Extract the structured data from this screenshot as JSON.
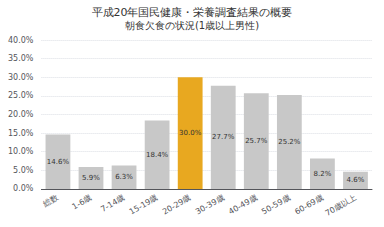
{
  "chart_data": {
    "type": "bar",
    "title": "平成20年国民健康・栄養調査結果の概要",
    "subtitle": "朝食欠食の状況(1歳以上男性)",
    "categories": [
      "総数",
      "1-6歳",
      "7-14歳",
      "15-19歳",
      "20-29歳",
      "30-39歳",
      "40-49歳",
      "50-59歳",
      "60-69歳",
      "70歳以上"
    ],
    "values": [
      14.6,
      5.9,
      6.3,
      18.4,
      30.0,
      27.7,
      25.7,
      25.2,
      8.2,
      4.6
    ],
    "value_labels": [
      "14.6%",
      "5.9%",
      "6.3%",
      "18.4%",
      "30.0%",
      "27.7%",
      "25.7%",
      "25.2%",
      "8.2%",
      "4.6%"
    ],
    "data_labels": true,
    "colors": [
      "#c8c8c8",
      "#c8c8c8",
      "#c8c8c8",
      "#c8c8c8",
      "#e8a820",
      "#c8c8c8",
      "#c8c8c8",
      "#c8c8c8",
      "#c8c8c8",
      "#c8c8c8"
    ],
    "ylim": [
      0,
      40
    ],
    "yticks": [
      {
        "value": 0,
        "label": "0.0%"
      },
      {
        "value": 5,
        "label": "5.0%"
      },
      {
        "value": 10,
        "label": "10.0%"
      },
      {
        "value": 15,
        "label": "15.0%"
      },
      {
        "value": 20,
        "label": "20.0%"
      },
      {
        "value": 25,
        "label": "25.0%"
      },
      {
        "value": 30,
        "label": "30.0%"
      },
      {
        "value": 35,
        "label": "35.0%"
      },
      {
        "value": 40,
        "label": "40.0%"
      }
    ],
    "grid": true
  }
}
